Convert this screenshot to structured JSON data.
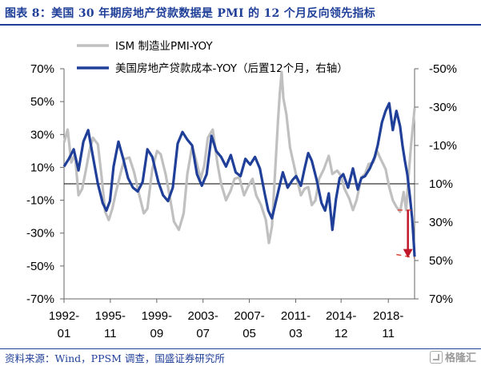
{
  "title": "图表 8：美国 30 年期房地产贷款数据是 PMI 的 12 个月反向领先指标",
  "source": "资料来源：Wind，PPSM 调查，国盛证券研究所",
  "watermark": "格隆汇",
  "colors": {
    "title": "#1f3f99",
    "ism": "#c0c0c0",
    "mortgage": "#1f3f99",
    "reference": "#d84a3a",
    "arrow": "#c0182a"
  },
  "chart_data": {
    "type": "line",
    "left_axis": {
      "ylim": [
        -70,
        70
      ],
      "ticks": [
        70,
        50,
        30,
        10,
        -10,
        -30,
        -50,
        -70
      ],
      "tick_labels": [
        "70%",
        "50%",
        "30%",
        "10%",
        "-10%",
        "-30%",
        "-50%",
        "-70%"
      ]
    },
    "right_axis": {
      "inverted": true,
      "ylim": [
        -50,
        70
      ],
      "ticks": [
        -50,
        -30,
        -10,
        10,
        30,
        50,
        70
      ],
      "tick_labels": [
        "-50%",
        "-30%",
        "-10%",
        "10%",
        "30%",
        "50%",
        "70%"
      ]
    },
    "x_axis": {
      "xlim": [
        1992.0,
        2021.0
      ],
      "ticks": [
        1992.0,
        1995.83,
        1999.67,
        2003.5,
        2007.33,
        2011.17,
        2014.92,
        2018.83
      ],
      "tick_labels_line1": [
        "1992-",
        "1995-",
        "1999-",
        "2003-",
        "2007-",
        "2011-",
        "2014-",
        "2018-"
      ],
      "tick_labels_line2": [
        "01",
        "11",
        "09",
        "07",
        "05",
        "03",
        "12",
        "11"
      ]
    },
    "grid": false,
    "legend_position": "top-center",
    "reference_line": {
      "axis": "left",
      "y": 0
    },
    "series": [
      {
        "name": "ISM 制造业PMI-YOY",
        "axis": "left",
        "points": [
          [
            1992.0,
            25
          ],
          [
            1992.3,
            33
          ],
          [
            1992.6,
            13
          ],
          [
            1992.9,
            18
          ],
          [
            1993.2,
            -7
          ],
          [
            1993.5,
            -3
          ],
          [
            1993.8,
            8
          ],
          [
            1994.1,
            20
          ],
          [
            1994.4,
            28
          ],
          [
            1994.8,
            24
          ],
          [
            1995.1,
            5
          ],
          [
            1995.4,
            -17
          ],
          [
            1995.7,
            -22
          ],
          [
            1996.0,
            -15
          ],
          [
            1996.3,
            -5
          ],
          [
            1996.7,
            7
          ],
          [
            1997.0,
            15
          ],
          [
            1997.4,
            16
          ],
          [
            1997.8,
            7
          ],
          [
            1998.2,
            -6
          ],
          [
            1998.6,
            -18
          ],
          [
            1998.9,
            -15
          ],
          [
            1999.3,
            9
          ],
          [
            1999.7,
            20
          ],
          [
            2000.0,
            18
          ],
          [
            2000.4,
            6
          ],
          [
            2000.8,
            -10
          ],
          [
            2001.1,
            -23
          ],
          [
            2001.5,
            -28
          ],
          [
            2001.9,
            -18
          ],
          [
            2002.2,
            6
          ],
          [
            2002.6,
            23
          ],
          [
            2002.9,
            15
          ],
          [
            2003.3,
            3
          ],
          [
            2003.6,
            11
          ],
          [
            2003.9,
            28
          ],
          [
            2004.3,
            33
          ],
          [
            2004.7,
            12
          ],
          [
            2005.0,
            0
          ],
          [
            2005.4,
            -10
          ],
          [
            2005.8,
            -4
          ],
          [
            2006.1,
            3
          ],
          [
            2006.5,
            4
          ],
          [
            2006.9,
            -7
          ],
          [
            2007.2,
            -2
          ],
          [
            2007.6,
            3
          ],
          [
            2007.9,
            -7
          ],
          [
            2008.3,
            -13
          ],
          [
            2008.7,
            -22
          ],
          [
            2008.95,
            -36
          ],
          [
            2009.2,
            -26
          ],
          [
            2009.5,
            12
          ],
          [
            2009.7,
            38
          ],
          [
            2009.85,
            55
          ],
          [
            2010.0,
            68
          ],
          [
            2010.15,
            52
          ],
          [
            2010.4,
            42
          ],
          [
            2010.7,
            22
          ],
          [
            2011.0,
            12
          ],
          [
            2011.3,
            2
          ],
          [
            2011.6,
            -7
          ],
          [
            2011.9,
            -3
          ],
          [
            2012.2,
            -2
          ],
          [
            2012.5,
            -13
          ],
          [
            2012.8,
            -10
          ],
          [
            2013.1,
            3
          ],
          [
            2013.5,
            9
          ],
          [
            2013.9,
            17
          ],
          [
            2014.2,
            6
          ],
          [
            2014.6,
            8
          ],
          [
            2014.9,
            5
          ],
          [
            2015.2,
            -3
          ],
          [
            2015.6,
            -9
          ],
          [
            2015.9,
            -16
          ],
          [
            2016.2,
            -10
          ],
          [
            2016.6,
            4
          ],
          [
            2016.9,
            6
          ],
          [
            2017.2,
            12
          ],
          [
            2017.6,
            13
          ],
          [
            2017.9,
            20
          ],
          [
            2018.2,
            15
          ],
          [
            2018.6,
            9
          ],
          [
            2018.9,
            -2
          ],
          [
            2019.2,
            -10
          ],
          [
            2019.5,
            -14
          ],
          [
            2019.8,
            -17
          ],
          [
            2020.1,
            -5
          ],
          [
            2020.3,
            -16
          ],
          [
            2020.5,
            4
          ],
          [
            2020.7,
            23
          ],
          [
            2020.9,
            38
          ],
          [
            2021.0,
            46
          ]
        ]
      },
      {
        "name": "美国房地产贷款成本-YOY（后置12个月，右轴）",
        "axis": "right",
        "points": [
          [
            1992.0,
            1
          ],
          [
            1992.4,
            -3
          ],
          [
            1992.8,
            -8
          ],
          [
            1993.2,
            3
          ],
          [
            1993.6,
            -12
          ],
          [
            1994.0,
            -18
          ],
          [
            1994.4,
            -4
          ],
          [
            1994.8,
            10
          ],
          [
            1995.2,
            20
          ],
          [
            1995.5,
            24
          ],
          [
            1995.8,
            19
          ],
          [
            1996.1,
            1
          ],
          [
            1996.5,
            -12
          ],
          [
            1996.9,
            -3
          ],
          [
            1997.3,
            7
          ],
          [
            1997.7,
            12
          ],
          [
            1998.1,
            14
          ],
          [
            1998.5,
            9
          ],
          [
            1998.9,
            -8
          ],
          [
            1999.3,
            -4
          ],
          [
            1999.8,
            9
          ],
          [
            2000.2,
            16
          ],
          [
            2000.6,
            19
          ],
          [
            2001.0,
            12
          ],
          [
            2001.4,
            -11
          ],
          [
            2001.8,
            -17
          ],
          [
            2002.2,
            -13
          ],
          [
            2002.6,
            -10
          ],
          [
            2003.0,
            5
          ],
          [
            2003.4,
            11
          ],
          [
            2003.8,
            5
          ],
          [
            2004.2,
            -15
          ],
          [
            2004.6,
            -7
          ],
          [
            2005.0,
            -4
          ],
          [
            2005.4,
            1
          ],
          [
            2005.8,
            -5
          ],
          [
            2006.2,
            4
          ],
          [
            2006.6,
            6
          ],
          [
            2007.0,
            -3
          ],
          [
            2007.4,
            0
          ],
          [
            2007.8,
            -4
          ],
          [
            2008.2,
            2
          ],
          [
            2008.6,
            15
          ],
          [
            2008.9,
            24
          ],
          [
            2009.2,
            28
          ],
          [
            2009.5,
            20
          ],
          [
            2009.8,
            12
          ],
          [
            2010.1,
            4
          ],
          [
            2010.5,
            12
          ],
          [
            2010.9,
            8
          ],
          [
            2011.2,
            6
          ],
          [
            2011.6,
            11
          ],
          [
            2011.9,
            2
          ],
          [
            2012.2,
            -6
          ],
          [
            2012.5,
            -2
          ],
          [
            2012.9,
            8
          ],
          [
            2013.3,
            20
          ],
          [
            2013.6,
            24
          ],
          [
            2013.9,
            15
          ],
          [
            2014.2,
            34
          ],
          [
            2014.5,
            18
          ],
          [
            2014.8,
            7
          ],
          [
            2015.1,
            5
          ],
          [
            2015.5,
            12
          ],
          [
            2015.9,
            2
          ],
          [
            2016.3,
            13
          ],
          [
            2016.6,
            7
          ],
          [
            2016.9,
            6
          ],
          [
            2017.3,
            2
          ],
          [
            2017.7,
            -4
          ],
          [
            2017.95,
            -10
          ],
          [
            2018.3,
            -22
          ],
          [
            2018.6,
            -28
          ],
          [
            2018.9,
            -32
          ],
          [
            2019.2,
            -18
          ],
          [
            2019.5,
            -28
          ],
          [
            2019.8,
            -20
          ],
          [
            2020.0,
            -10
          ],
          [
            2020.2,
            -2
          ],
          [
            2020.4,
            5
          ],
          [
            2020.6,
            16
          ],
          [
            2020.8,
            28
          ],
          [
            2020.95,
            42
          ],
          [
            2021.0,
            48
          ]
        ]
      }
    ],
    "annotations": [
      {
        "type": "dashed-line",
        "axis": "left",
        "from": [
          2019.5,
          -43
        ],
        "to": [
          2021.0,
          -45
        ]
      },
      {
        "type": "dashed-line",
        "axis": "left",
        "from": [
          2019.6,
          -16
        ],
        "to": [
          2021.0,
          -16
        ]
      },
      {
        "type": "arrow",
        "axis": "left",
        "x": 2020.45,
        "from_y": -16,
        "to_y": -45
      }
    ]
  }
}
